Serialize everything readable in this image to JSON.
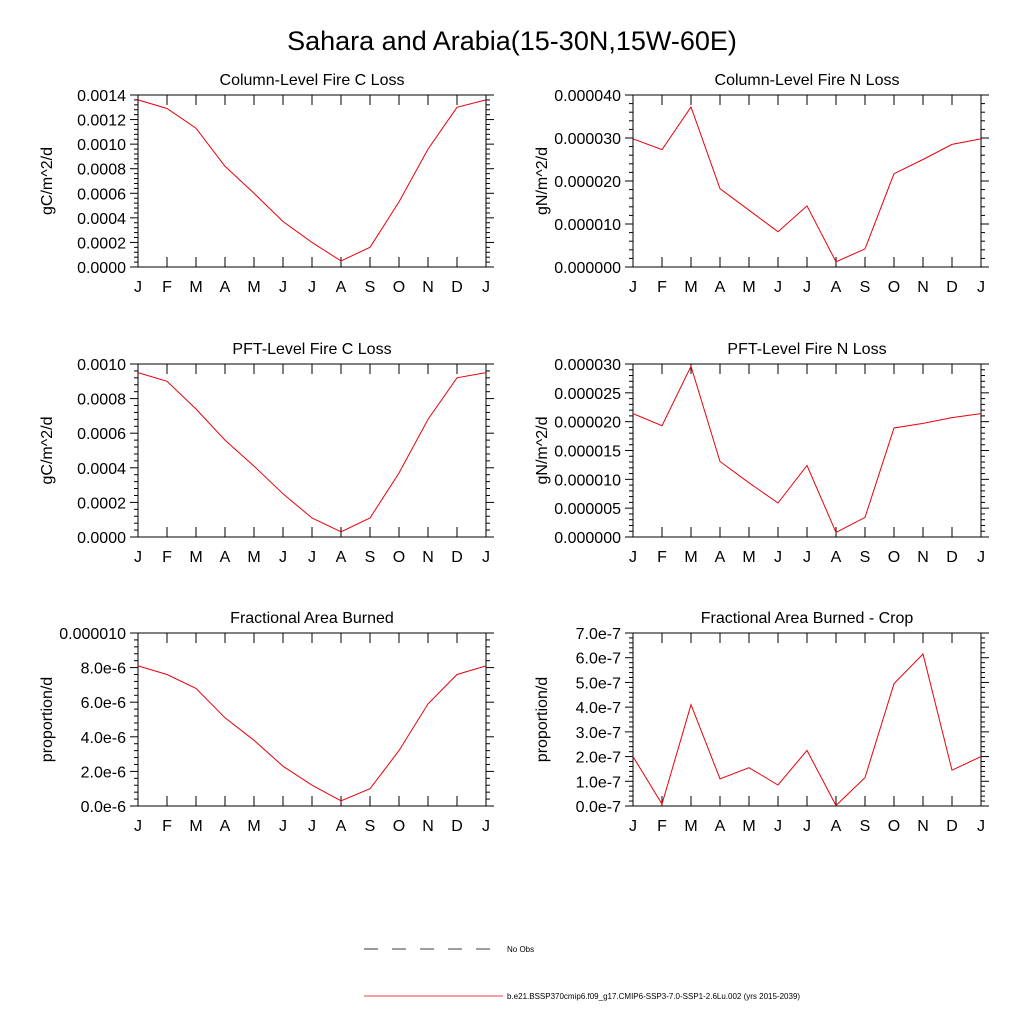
{
  "figure": {
    "title": "Sahara and Arabia(15-30N,15W-60E)"
  },
  "colors": {
    "series": "#e8000b",
    "axis": "#000000",
    "background": "#ffffff"
  },
  "legend": {
    "obs_label": "No Obs",
    "model_label": "b.e21.BSSP370cmip6.f09_g17.CMIP6-SSP3-7.0-SSP1-2.6Lu.002 (yrs 2015-2039)"
  },
  "chart_data": [
    {
      "type": "line",
      "title": "Column-Level Fire C Loss",
      "ylabel": "gC/m^2/d",
      "categories": [
        "J",
        "F",
        "M",
        "A",
        "M",
        "J",
        "J",
        "A",
        "S",
        "O",
        "N",
        "D",
        "J"
      ],
      "ylim": [
        0,
        0.0014
      ],
      "yticks": [
        0,
        0.0002,
        0.0004,
        0.0006,
        0.0008,
        0.001,
        0.0012,
        0.0014
      ],
      "ytick_labels": [
        "0.0000",
        "0.0002",
        "0.0004",
        "0.0006",
        "0.0008",
        "0.0010",
        "0.0012",
        "0.0014"
      ],
      "series": [
        {
          "values": [
            0.00136,
            0.00129,
            0.00113,
            0.00082,
            0.0006,
            0.00037,
            0.0002,
            5e-05,
            0.00016,
            0.00053,
            0.00096,
            0.0013,
            0.00136
          ]
        }
      ]
    },
    {
      "type": "line",
      "title": "Column-Level Fire N Loss",
      "ylabel": "gN/m^2/d",
      "categories": [
        "J",
        "F",
        "M",
        "A",
        "M",
        "J",
        "J",
        "A",
        "S",
        "O",
        "N",
        "D",
        "J"
      ],
      "ylim": [
        0,
        4e-05
      ],
      "yticks": [
        0,
        1e-05,
        2e-05,
        3e-05,
        4e-05
      ],
      "ytick_labels": [
        "0.000000",
        "0.000010",
        "0.000020",
        "0.000030",
        "0.000040"
      ],
      "series": [
        {
          "values": [
            2.98e-05,
            2.73e-05,
            3.72e-05,
            1.82e-05,
            1.32e-05,
            8.2e-06,
            1.42e-05,
            1.2e-06,
            4.2e-06,
            2.17e-05,
            2.5e-05,
            2.85e-05,
            2.98e-05
          ]
        }
      ]
    },
    {
      "type": "line",
      "title": "PFT-Level Fire C Loss",
      "ylabel": "gC/m^2/d",
      "categories": [
        "J",
        "F",
        "M",
        "A",
        "M",
        "J",
        "J",
        "A",
        "S",
        "O",
        "N",
        "D",
        "J"
      ],
      "ylim": [
        0,
        0.001
      ],
      "yticks": [
        0,
        0.0002,
        0.0004,
        0.0006,
        0.0008,
        0.001
      ],
      "ytick_labels": [
        "0.0000",
        "0.0002",
        "0.0004",
        "0.0006",
        "0.0008",
        "0.0010"
      ],
      "series": [
        {
          "values": [
            0.00095,
            0.0009,
            0.00074,
            0.00056,
            0.00041,
            0.00025,
            0.00011,
            3e-05,
            0.00011,
            0.00037,
            0.00068,
            0.00092,
            0.00095
          ]
        }
      ]
    },
    {
      "type": "line",
      "title": "PFT-Level Fire N Loss",
      "ylabel": "gN/m^2/d",
      "categories": [
        "J",
        "F",
        "M",
        "A",
        "M",
        "J",
        "J",
        "A",
        "S",
        "O",
        "N",
        "D",
        "J"
      ],
      "ylim": [
        0,
        3e-05
      ],
      "yticks": [
        0,
        5e-06,
        1e-05,
        1.5e-05,
        2e-05,
        2.5e-05,
        3e-05
      ],
      "ytick_labels": [
        "0.000000",
        "0.000005",
        "0.000010",
        "0.000015",
        "0.000020",
        "0.000025",
        "0.000030"
      ],
      "series": [
        {
          "values": [
            2.14e-05,
            1.93e-05,
            2.96e-05,
            1.31e-05,
            9.4e-06,
            5.9e-06,
            1.24e-05,
            8e-07,
            3.4e-06,
            1.89e-05,
            1.97e-05,
            2.07e-05,
            2.14e-05
          ]
        }
      ]
    },
    {
      "type": "line",
      "title": "Fractional Area Burned",
      "ylabel": "proportion/d",
      "categories": [
        "J",
        "F",
        "M",
        "A",
        "M",
        "J",
        "J",
        "A",
        "S",
        "O",
        "N",
        "D",
        "J"
      ],
      "ylim": [
        0,
        1e-05
      ],
      "yticks": [
        0,
        2e-06,
        4e-06,
        6e-06,
        8e-06,
        1e-05
      ],
      "ytick_labels": [
        "0.0e-6",
        "2.0e-6",
        "4.0e-6",
        "6.0e-6",
        "8.0e-6",
        "0.000010"
      ],
      "series": [
        {
          "values": [
            8.1e-06,
            7.6e-06,
            6.8e-06,
            5.1e-06,
            3.8e-06,
            2.3e-06,
            1.2e-06,
            3e-07,
            1e-06,
            3.2e-06,
            5.9e-06,
            7.6e-06,
            8.1e-06
          ]
        }
      ]
    },
    {
      "type": "line",
      "title": "Fractional Area Burned - Crop",
      "ylabel": "proportion/d",
      "categories": [
        "J",
        "F",
        "M",
        "A",
        "M",
        "J",
        "J",
        "A",
        "S",
        "O",
        "N",
        "D",
        "J"
      ],
      "ylim": [
        0,
        7e-07
      ],
      "yticks": [
        0,
        1e-07,
        2e-07,
        3e-07,
        4e-07,
        5e-07,
        6e-07,
        7e-07
      ],
      "ytick_labels": [
        "0.0e-7",
        "1.0e-7",
        "2.0e-7",
        "3.0e-7",
        "4.0e-7",
        "5.0e-7",
        "6.0e-7",
        "7.0e-7"
      ],
      "series": [
        {
          "values": [
            2e-07,
            8e-09,
            4.1e-07,
            1.1e-07,
            1.55e-07,
            8.5e-08,
            2.25e-07,
            2e-09,
            1.15e-07,
            4.95e-07,
            6.15e-07,
            1.45e-07,
            2e-07
          ]
        }
      ]
    }
  ]
}
